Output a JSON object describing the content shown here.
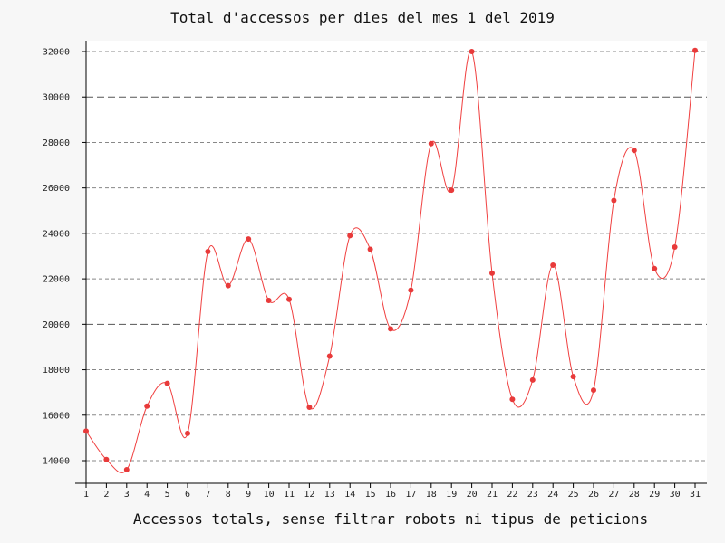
{
  "chart_data": {
    "type": "line",
    "title": "Total d'accessos per dies del mes 1 del 2019",
    "xlabel": "Accessos totals, sense filtrar robots ni tipus de peticions",
    "ylabel": "",
    "x": [
      1,
      2,
      3,
      4,
      5,
      6,
      7,
      8,
      9,
      10,
      11,
      12,
      13,
      14,
      15,
      16,
      17,
      18,
      19,
      20,
      21,
      22,
      23,
      24,
      25,
      26,
      27,
      28,
      29,
      30,
      31
    ],
    "series": [
      {
        "values": [
          15300,
          14050,
          13600,
          16400,
          17400,
          15200,
          23200,
          21700,
          23750,
          21050,
          21100,
          16350,
          18600,
          23900,
          23300,
          19800,
          21500,
          27950,
          25900,
          32000,
          22250,
          16700,
          17550,
          22600,
          17700,
          17100,
          25450,
          27650,
          22450,
          23400,
          32050
        ]
      }
    ],
    "yticks": [
      14000,
      16000,
      18000,
      20000,
      22000,
      24000,
      26000,
      28000,
      30000,
      32000
    ],
    "xticks": [
      "1",
      "2",
      "3",
      "4",
      "5",
      "6",
      "7",
      "8",
      "9",
      "10",
      "11",
      "12",
      "13",
      "14",
      "15",
      "16",
      "17",
      "18",
      "19",
      "20",
      "21",
      "22",
      "23",
      "24",
      "25",
      "26",
      "27",
      "28",
      "29",
      "30",
      "31"
    ],
    "ylim": [
      13000,
      32400
    ],
    "grid": true,
    "line_color": "#f04040",
    "point_color": "#e83a3a"
  }
}
